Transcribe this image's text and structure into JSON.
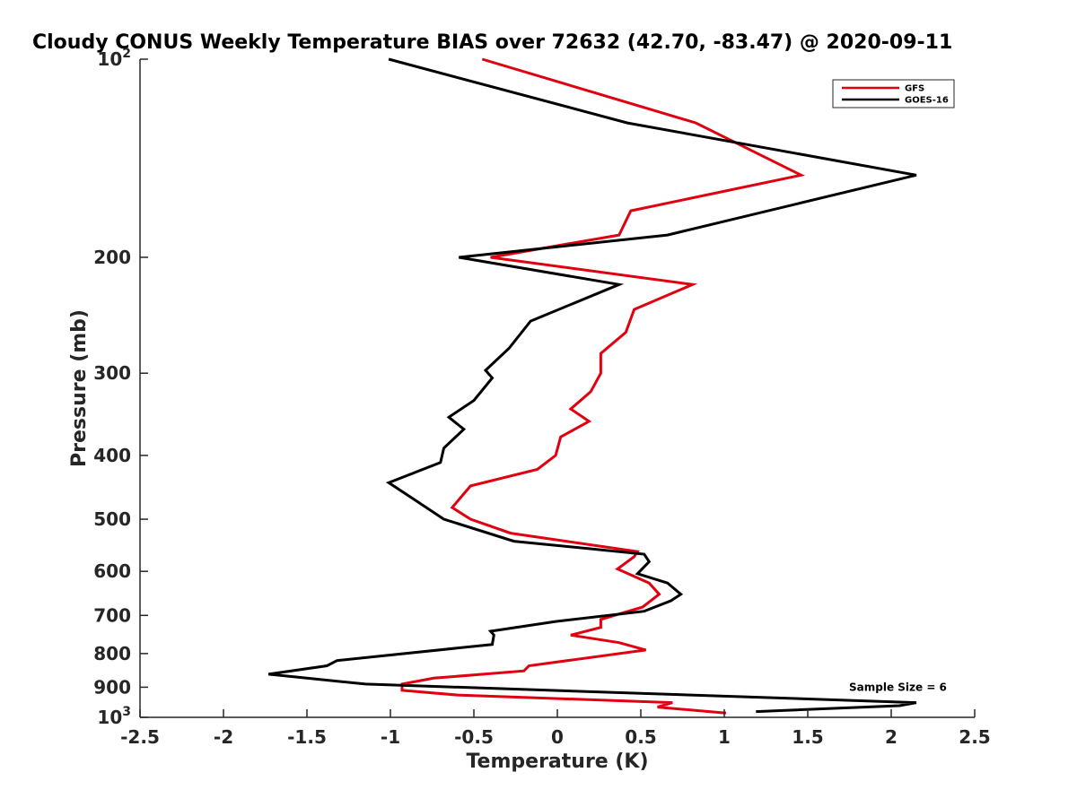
{
  "chart_data": {
    "type": "line",
    "title": "Cloudy CONUS Weekly Temperature BIAS over 72632 (42.70, -83.47) @ 2020-09-11",
    "xlabel": "Temperature (K)",
    "ylabel": "Pressure (mb)",
    "xlim": [
      -2.5,
      2.5
    ],
    "ylim": [
      1000,
      100
    ],
    "y_scale": "log",
    "y_reversed": true,
    "x_ticks": [
      "-2.5",
      "-2",
      "-1.5",
      "-1",
      "-0.5",
      "0",
      "0.5",
      "1",
      "1.5",
      "2",
      "2.5"
    ],
    "y_ticks": [
      {
        "value": 100,
        "base": "10",
        "exp": "2"
      },
      {
        "value": 200,
        "label": "200"
      },
      {
        "value": 300,
        "label": "300"
      },
      {
        "value": 400,
        "label": "400"
      },
      {
        "value": 500,
        "label": "500"
      },
      {
        "value": 600,
        "label": "600"
      },
      {
        "value": 700,
        "label": "700"
      },
      {
        "value": 800,
        "label": "800"
      },
      {
        "value": 900,
        "label": "900"
      },
      {
        "value": 1000,
        "base": "10",
        "exp": "3"
      }
    ],
    "grid": false,
    "legend": "top-right",
    "annotation": "Sample Size = 6",
    "series": [
      {
        "name": "GFS",
        "color": "#e0000f",
        "points": [
          [
            -0.45,
            100
          ],
          [
            0.83,
            125
          ],
          [
            1.46,
            150
          ],
          [
            0.44,
            170
          ],
          [
            0.37,
            185
          ],
          [
            -0.4,
            200
          ],
          [
            0.81,
            220
          ],
          [
            0.46,
            240
          ],
          [
            0.41,
            260
          ],
          [
            0.26,
            280
          ],
          [
            0.26,
            300
          ],
          [
            0.2,
            320
          ],
          [
            0.08,
            340
          ],
          [
            0.19,
            355
          ],
          [
            0.02,
            375
          ],
          [
            -0.01,
            400
          ],
          [
            -0.12,
            420
          ],
          [
            -0.52,
            445
          ],
          [
            -0.63,
            480
          ],
          [
            -0.52,
            500
          ],
          [
            -0.28,
            525
          ],
          [
            0.48,
            560
          ],
          [
            0.46,
            570
          ],
          [
            0.36,
            595
          ],
          [
            0.55,
            625
          ],
          [
            0.61,
            650
          ],
          [
            0.51,
            680
          ],
          [
            0.26,
            710
          ],
          [
            0.26,
            730
          ],
          [
            0.08,
            750
          ],
          [
            0.37,
            770
          ],
          [
            0.53,
            790
          ],
          [
            -0.17,
            835
          ],
          [
            -0.2,
            850
          ],
          [
            -0.74,
            872
          ],
          [
            -0.93,
            890
          ],
          [
            -0.93,
            910
          ],
          [
            -0.6,
            925
          ],
          [
            0.69,
            950
          ],
          [
            0.6,
            965
          ],
          [
            1.01,
            985
          ]
        ]
      },
      {
        "name": "GOES-16",
        "color": "#000000",
        "points": [
          [
            -1.01,
            100
          ],
          [
            0.42,
            125
          ],
          [
            2.15,
            150
          ],
          [
            0.66,
            185
          ],
          [
            -0.59,
            200
          ],
          [
            0.37,
            220
          ],
          [
            -0.16,
            250
          ],
          [
            -0.29,
            275
          ],
          [
            -0.43,
            297
          ],
          [
            -0.39,
            305
          ],
          [
            -0.5,
            330
          ],
          [
            -0.65,
            350
          ],
          [
            -0.56,
            365
          ],
          [
            -0.68,
            390
          ],
          [
            -0.7,
            410
          ],
          [
            -1.01,
            440
          ],
          [
            -0.84,
            470
          ],
          [
            -0.68,
            500
          ],
          [
            -0.26,
            540
          ],
          [
            0.52,
            565
          ],
          [
            0.55,
            580
          ],
          [
            0.48,
            605
          ],
          [
            0.66,
            625
          ],
          [
            0.74,
            650
          ],
          [
            0.68,
            665
          ],
          [
            0.52,
            690
          ],
          [
            -0.01,
            715
          ],
          [
            -0.4,
            740
          ],
          [
            -0.38,
            750
          ],
          [
            -0.39,
            775
          ],
          [
            -1.32,
            820
          ],
          [
            -1.38,
            835
          ],
          [
            -1.73,
            860
          ],
          [
            -1.15,
            890
          ],
          [
            2.15,
            950
          ],
          [
            2.05,
            960
          ],
          [
            1.19,
            980
          ]
        ]
      }
    ]
  }
}
